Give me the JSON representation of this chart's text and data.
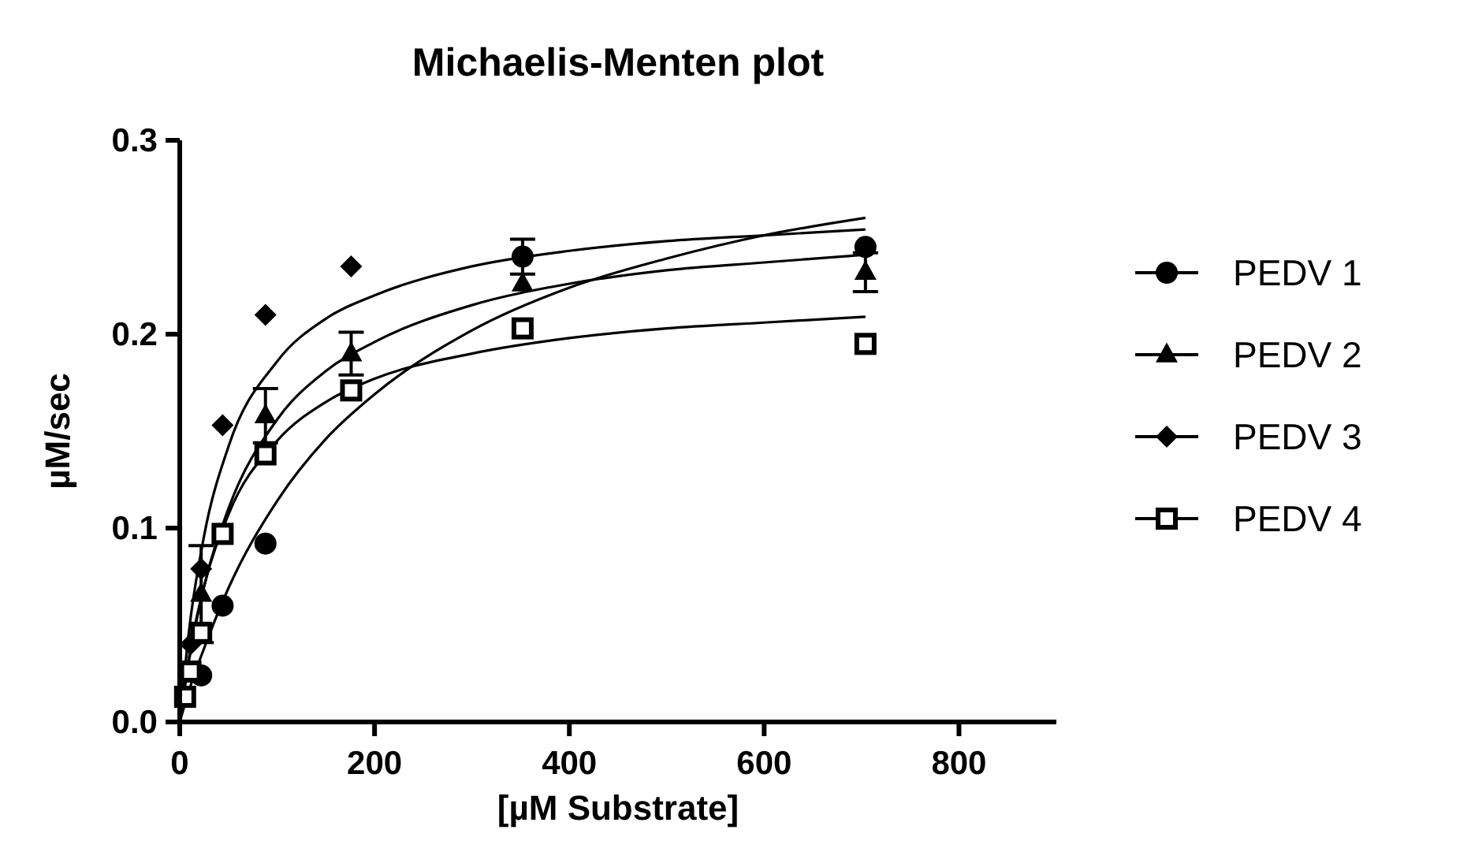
{
  "chart_data": {
    "type": "scatter",
    "title": "Michaelis-Menten plot",
    "xlabel": "[µM Substrate]",
    "ylabel": "µM/sec",
    "xlim": [
      0,
      900
    ],
    "xticks": [
      0,
      200,
      400,
      600,
      800
    ],
    "ylim": [
      0,
      0.3
    ],
    "yticks": [
      {
        "value": 0,
        "label": "0.0"
      },
      0.1,
      0.2,
      0.3
    ],
    "grid": false,
    "legend": "right",
    "series": [
      {
        "name": "PEDV 1",
        "marker": "circle",
        "color": "#000000",
        "x": [
          22,
          44,
          88,
          352,
          704
        ],
        "values": [
          0.024,
          0.06,
          0.092,
          0.24,
          0.245
        ],
        "errors": [
          null,
          null,
          null,
          0.009,
          null
        ]
      },
      {
        "name": "PEDV 2",
        "marker": "triangle",
        "color": "#000000",
        "x": [
          22,
          88,
          176,
          352,
          704
        ],
        "values": [
          0.066,
          0.158,
          0.19,
          0.226,
          0.232
        ],
        "errors": [
          0.025,
          0.014,
          0.011,
          null,
          0.01
        ]
      },
      {
        "name": "PEDV 3",
        "marker": "diamond",
        "color": "#000000",
        "x": [
          11,
          22,
          44,
          88,
          176
        ],
        "values": [
          0.04,
          0.079,
          0.153,
          0.21,
          0.235
        ]
      },
      {
        "name": "PEDV 4",
        "marker": "square",
        "color": "#000000",
        "x": [
          5.5,
          11,
          22,
          44,
          88,
          176,
          352,
          704
        ],
        "values": [
          0.013,
          0.026,
          0.046,
          0.097,
          0.138,
          0.171,
          0.203,
          0.195
        ]
      },
      {
        "type": "line",
        "marker": "none",
        "color": "#000000",
        "x": [
          0,
          10,
          25,
          50,
          100,
          150,
          200,
          300,
          400,
          500,
          600,
          704
        ],
        "values": [
          0,
          0.017,
          0.038,
          0.069,
          0.114,
          0.146,
          0.169,
          0.202,
          0.224,
          0.239,
          0.251,
          0.26
        ]
      },
      {
        "type": "line",
        "marker": "none",
        "color": "#000000",
        "x": [
          0,
          10,
          25,
          50,
          100,
          150,
          200,
          300,
          400,
          500,
          600,
          704
        ],
        "values": [
          0,
          0.033,
          0.07,
          0.11,
          0.156,
          0.181,
          0.196,
          0.215,
          0.226,
          0.233,
          0.237,
          0.241
        ]
      },
      {
        "type": "line",
        "marker": "none",
        "color": "#000000",
        "x": [
          0,
          10,
          25,
          50,
          100,
          150,
          200,
          300,
          400,
          500,
          600,
          704
        ],
        "values": [
          0,
          0.049,
          0.096,
          0.142,
          0.186,
          0.208,
          0.22,
          0.235,
          0.243,
          0.248,
          0.251,
          0.254
        ]
      },
      {
        "type": "line",
        "marker": "none",
        "color": "#000000",
        "x": [
          0,
          10,
          25,
          50,
          100,
          150,
          200,
          300,
          400,
          500,
          600,
          704
        ],
        "values": [
          0,
          0.035,
          0.07,
          0.107,
          0.145,
          0.165,
          0.177,
          0.19,
          0.198,
          0.203,
          0.206,
          0.209
        ]
      }
    ]
  }
}
